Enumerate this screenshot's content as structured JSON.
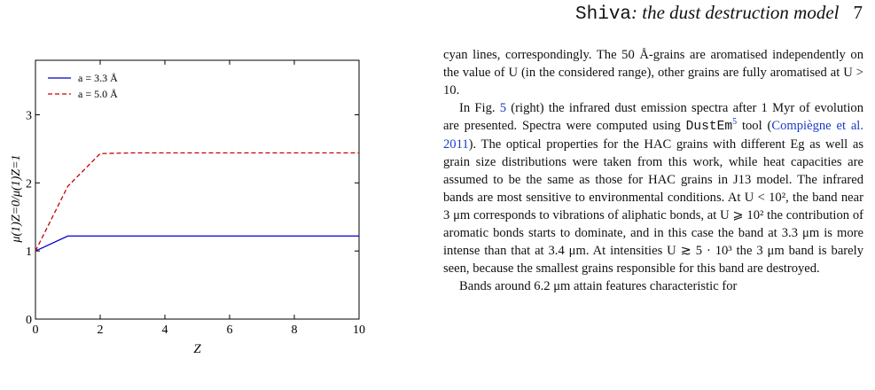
{
  "running_head": {
    "model_name": "Shiva",
    "subtitle": ": the dust destruction model",
    "page_number": "7"
  },
  "chart_data": {
    "type": "line",
    "xlabel": "Z",
    "ylabel": "μ(1)Z=0/μ(1)Z=1",
    "xlim": [
      0,
      10
    ],
    "ylim": [
      0,
      3.8
    ],
    "x_ticks": [
      "0",
      "2",
      "4",
      "6",
      "8",
      "10"
    ],
    "y_ticks": [
      "0",
      "1",
      "2",
      "3"
    ],
    "legend_position": "top-left",
    "series": [
      {
        "name": "a = 3.3 Å",
        "color": "#0000cc",
        "style": "solid",
        "x": [
          0,
          1,
          2,
          3,
          4,
          5,
          6,
          7,
          8,
          9,
          10
        ],
        "y": [
          1.0,
          1.22,
          1.22,
          1.22,
          1.22,
          1.22,
          1.22,
          1.22,
          1.22,
          1.22,
          1.22
        ]
      },
      {
        "name": "a = 5.0 Å",
        "color": "#cc0000",
        "style": "dashed",
        "x": [
          0,
          1,
          2,
          3,
          4,
          5,
          6,
          7,
          8,
          9,
          10
        ],
        "y": [
          1.0,
          1.95,
          2.43,
          2.44,
          2.44,
          2.44,
          2.44,
          2.44,
          2.44,
          2.44,
          2.44
        ]
      }
    ]
  },
  "text": {
    "p1": "cyan lines, correspondingly. The 50 Å-grains are aromatised independently on the value of U (in the considered range), other grains are fully aromatised at U > 10.",
    "p2_a": "In Fig. ",
    "p2_fig_ref": "5",
    "p2_b": " (right) the infrared dust emission spectra after 1 Myr of evolution are presented. Spectra were computed using ",
    "p2_tool": "DustEm",
    "p2_footnote": "5",
    "p2_c": " tool (",
    "p2_cite": "Compiègne et al. 2011",
    "p2_d": "). The optical properties for the HAC grains with different Eg as well as grain size distributions were taken from this work, while heat capacities are assumed to be the same as those for HAC grains in J13 model. The infrared bands are most sensitive to environmental conditions. At U < 10², the band near 3 μm corresponds to vibrations of aliphatic bonds, at U ⩾ 10² the contribution of aromatic bonds starts to dominate, and in this case the band at 3.3 μm is more intense than that at 3.4 μm. At intensities U ≳ 5 · 10³ the 3 μm band is barely seen, because the smallest grains responsible for this band are destroyed.",
    "p3": "Bands around 6.2 μm attain features characteristic for"
  }
}
